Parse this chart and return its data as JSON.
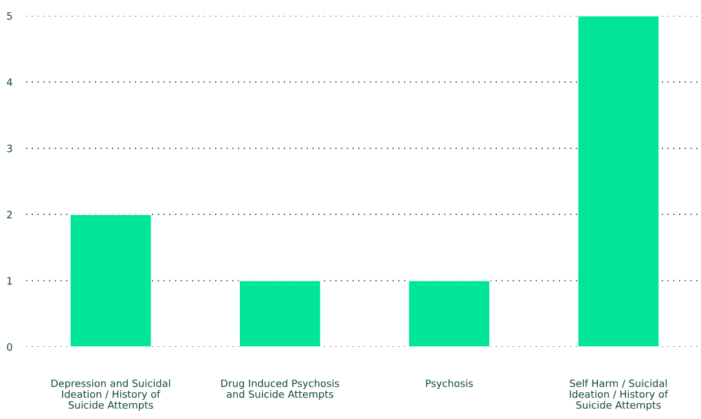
{
  "chart_data": {
    "type": "bar",
    "categories": [
      "Depression and Suicidal Ideation / History of Suicide Attempts",
      "Drug Induced Psychosis and Suicide Attempts",
      "Psychosis",
      "Self Harm / Suicidal Ideation / History of Suicide Attempts"
    ],
    "values": [
      2,
      1,
      1,
      5
    ],
    "color": "#00e599",
    "ylim": [
      0,
      5
    ],
    "yticks": [
      0,
      1,
      2,
      3,
      4,
      5
    ],
    "grid": "y",
    "line_style": "dotted"
  }
}
